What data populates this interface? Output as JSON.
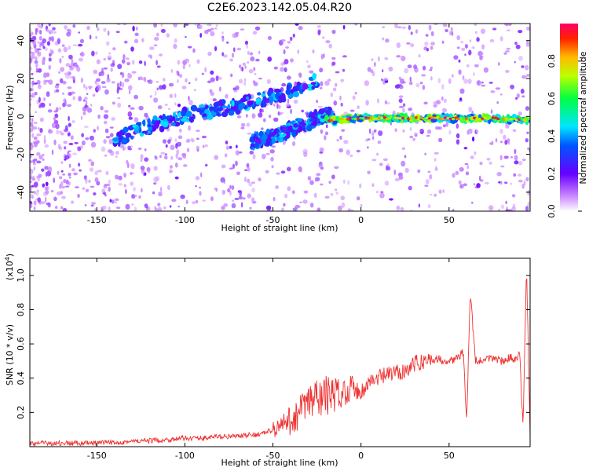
{
  "title": "C2E6.2023.142.05.04.R20",
  "chart_data": [
    {
      "type": "heatmap",
      "xlabel": "Height of straight line (km)",
      "ylabel": "Frequency (Hz)",
      "xlim": [
        -188,
        96
      ],
      "ylim": [
        -50,
        49
      ],
      "xticks": [
        -150,
        -100,
        -50,
        0,
        50
      ],
      "yticks": [
        -40,
        -20,
        0,
        20,
        40
      ],
      "colorbar": {
        "label": "Normalized spectral amplitude",
        "range": [
          0,
          1
        ],
        "ticks": [
          "0.0",
          "0.2",
          "0.4",
          "0.6",
          "0.8"
        ]
      },
      "traces": [
        {
          "name": "rising",
          "points": [
            [
              -140,
              -12
            ],
            [
              -120,
              -5
            ],
            [
              -100,
              0
            ],
            [
              -80,
              4
            ],
            [
              -60,
              8
            ],
            [
              -45,
              12
            ],
            [
              -30,
              16
            ],
            [
              -25,
              20
            ]
          ]
        },
        {
          "name": "lower",
          "points": [
            [
              -62,
              -13
            ],
            [
              -50,
              -11
            ],
            [
              -40,
              -7
            ],
            [
              -30,
              -3
            ],
            [
              -20,
              1
            ],
            [
              -15,
              -1
            ]
          ]
        },
        {
          "name": "flat",
          "points": [
            [
              -20,
              -2
            ],
            [
              0,
              -1
            ],
            [
              25,
              -1
            ],
            [
              50,
              -1
            ],
            [
              75,
              -1
            ],
            [
              95,
              -2
            ]
          ]
        }
      ]
    },
    {
      "type": "line",
      "xlabel": "Height of straight line (km)",
      "ylabel": "SNR (10 * v/v)",
      "y_multiplier": "(x10^4)",
      "y_multiplier_base": "(x10",
      "y_multiplier_exp": "4",
      "y_multiplier_close": ")",
      "xlim": [
        -188,
        96
      ],
      "ylim": [
        0,
        1.1
      ],
      "xticks": [
        -150,
        -100,
        -50,
        0,
        50
      ],
      "yticks": [
        "0.2",
        "0.4",
        "0.6",
        "0.8",
        "1.0"
      ],
      "series": [
        {
          "color": "#ee3333",
          "x": [
            -188,
            -170,
            -150,
            -130,
            -110,
            -100,
            -90,
            -80,
            -70,
            -60,
            -55,
            -50,
            -45,
            -40,
            -35,
            -30,
            -25,
            -20,
            -15,
            -10,
            -5,
            0,
            5,
            10,
            15,
            20,
            25,
            30,
            35,
            40,
            45,
            50,
            55,
            58,
            60,
            62,
            65,
            70,
            75,
            80,
            85,
            88,
            90,
            92,
            94,
            96
          ],
          "values": [
            0.02,
            0.02,
            0.02,
            0.03,
            0.04,
            0.05,
            0.05,
            0.06,
            0.06,
            0.07,
            0.08,
            0.1,
            0.12,
            0.15,
            0.2,
            0.25,
            0.28,
            0.3,
            0.3,
            0.32,
            0.35,
            0.32,
            0.38,
            0.4,
            0.42,
            0.43,
            0.45,
            0.48,
            0.5,
            0.51,
            0.51,
            0.5,
            0.52,
            0.55,
            0.15,
            0.9,
            0.5,
            0.5,
            0.52,
            0.5,
            0.52,
            0.5,
            0.55,
            0.1,
            1.05,
            0.05
          ]
        }
      ]
    }
  ]
}
